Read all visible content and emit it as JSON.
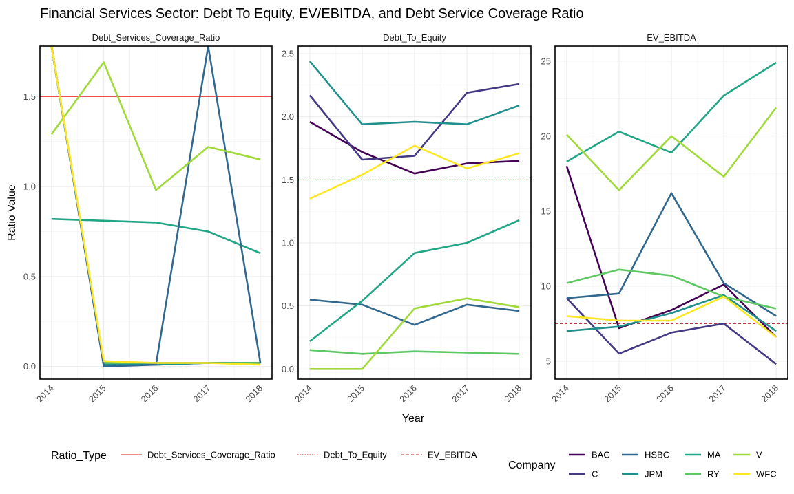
{
  "chart_data": {
    "type": "line",
    "title": "Financial Services Sector: Debt To Equity, EV/EBITDA, and Debt Service Coverage Ratio",
    "xlabel": "Year",
    "ylabel": "Ratio Value",
    "x": [
      "2014",
      "2015",
      "2016",
      "2017",
      "2018"
    ],
    "company_colors": {
      "BAC": "#440154",
      "C": "#443983",
      "HSBC": "#31688e",
      "JPM": "#21908d",
      "MA": "#21a685",
      "RY": "#5ec962",
      "V": "#a0da39",
      "WFC": "#fde725"
    },
    "panels": [
      {
        "strip": "Debt_Services_Coverage_Ratio",
        "ylim": [
          -0.07,
          1.78
        ],
        "yticks": [
          0.0,
          0.5,
          1.0,
          1.5
        ],
        "ytick_labels": [
          "0.0",
          "0.5",
          "1.0",
          "1.5"
        ],
        "reference": {
          "value": 1.5,
          "style": "solid",
          "color": "#e41a1c"
        },
        "series": [
          {
            "name": "BAC",
            "values": [
              1.78,
              0.02,
              0.02,
              0.02,
              0.02
            ]
          },
          {
            "name": "C",
            "values": [
              1.78,
              0.01,
              0.01,
              0.02,
              0.02
            ]
          },
          {
            "name": "JPM",
            "values": [
              1.78,
              0.01,
              0.01,
              0.02,
              0.02
            ]
          },
          {
            "name": "RY",
            "values": [
              1.78,
              0.02,
              0.02,
              0.02,
              0.02
            ]
          },
          {
            "name": "MA",
            "values": [
              0.82,
              0.81,
              0.8,
              0.75,
              0.63
            ]
          },
          {
            "name": "HSBC",
            "values": [
              1.78,
              0.0,
              0.01,
              1.78,
              0.02
            ]
          },
          {
            "name": "V",
            "values": [
              1.29,
              1.69,
              0.98,
              1.22,
              1.15
            ]
          },
          {
            "name": "WFC",
            "values": [
              1.78,
              0.03,
              0.02,
              0.02,
              0.01
            ]
          }
        ]
      },
      {
        "strip": "Debt_To_Equity",
        "ylim": [
          -0.08,
          2.56
        ],
        "yticks": [
          0.0,
          0.5,
          1.0,
          1.5,
          2.0,
          2.5
        ],
        "ytick_labels": [
          "0.0",
          "0.5",
          "1.0",
          "1.5",
          "2.0",
          "2.5"
        ],
        "reference": {
          "value": 1.5,
          "style": "dotted",
          "color": "#b22222"
        },
        "series": [
          {
            "name": "BAC",
            "values": [
              1.96,
              1.72,
              1.55,
              1.63,
              1.65
            ]
          },
          {
            "name": "C",
            "values": [
              2.17,
              1.66,
              1.69,
              2.19,
              2.26
            ]
          },
          {
            "name": "HSBC",
            "values": [
              0.55,
              0.51,
              0.35,
              0.51,
              0.46
            ]
          },
          {
            "name": "JPM",
            "values": [
              2.44,
              1.94,
              1.96,
              1.94,
              2.09
            ]
          },
          {
            "name": "MA",
            "values": [
              0.22,
              0.54,
              0.92,
              1.0,
              1.18
            ]
          },
          {
            "name": "RY",
            "values": [
              0.15,
              0.12,
              0.14,
              0.13,
              0.12
            ]
          },
          {
            "name": "V",
            "values": [
              0.0,
              0.0,
              0.48,
              0.56,
              0.49
            ]
          },
          {
            "name": "WFC",
            "values": [
              1.35,
              1.54,
              1.77,
              1.59,
              1.71
            ]
          }
        ]
      },
      {
        "strip": "EV_EBITDA",
        "ylim": [
          3.8,
          26.0
        ],
        "yticks": [
          5,
          10,
          15,
          20,
          25
        ],
        "ytick_labels": [
          "5",
          "10",
          "15",
          "20",
          "25"
        ],
        "reference": {
          "value": 7.5,
          "style": "dashed",
          "color": "#b22222"
        },
        "series": [
          {
            "name": "BAC",
            "values": [
              18.0,
              7.2,
              8.4,
              10.1,
              6.6
            ]
          },
          {
            "name": "C",
            "values": [
              9.2,
              5.5,
              6.9,
              7.5,
              4.8
            ]
          },
          {
            "name": "HSBC",
            "values": [
              9.2,
              9.5,
              16.2,
              10.2,
              8.0
            ]
          },
          {
            "name": "JPM",
            "values": [
              7.0,
              7.3,
              8.2,
              9.4,
              7.0
            ]
          },
          {
            "name": "MA",
            "values": [
              18.3,
              20.3,
              18.9,
              22.7,
              24.9
            ]
          },
          {
            "name": "RY",
            "values": [
              10.2,
              11.1,
              10.7,
              9.3,
              8.5
            ]
          },
          {
            "name": "V",
            "values": [
              20.1,
              16.4,
              20.0,
              17.3,
              21.9
            ]
          },
          {
            "name": "WFC",
            "values": [
              8.0,
              7.7,
              7.7,
              9.3,
              6.6
            ]
          }
        ]
      }
    ],
    "legend_linetype": {
      "title": "Ratio_Type",
      "entries": [
        {
          "label": "Debt_Services_Coverage_Ratio",
          "style": "solid"
        },
        {
          "label": "Debt_To_Equity",
          "style": "dotted"
        },
        {
          "label": "EV_EBITDA",
          "style": "dashed"
        }
      ]
    },
    "legend_company": {
      "title": "Company",
      "entries": [
        "BAC",
        "C",
        "HSBC",
        "JPM",
        "MA",
        "RY",
        "V",
        "WFC"
      ]
    },
    "legend_position": "bottom",
    "grid": true
  }
}
